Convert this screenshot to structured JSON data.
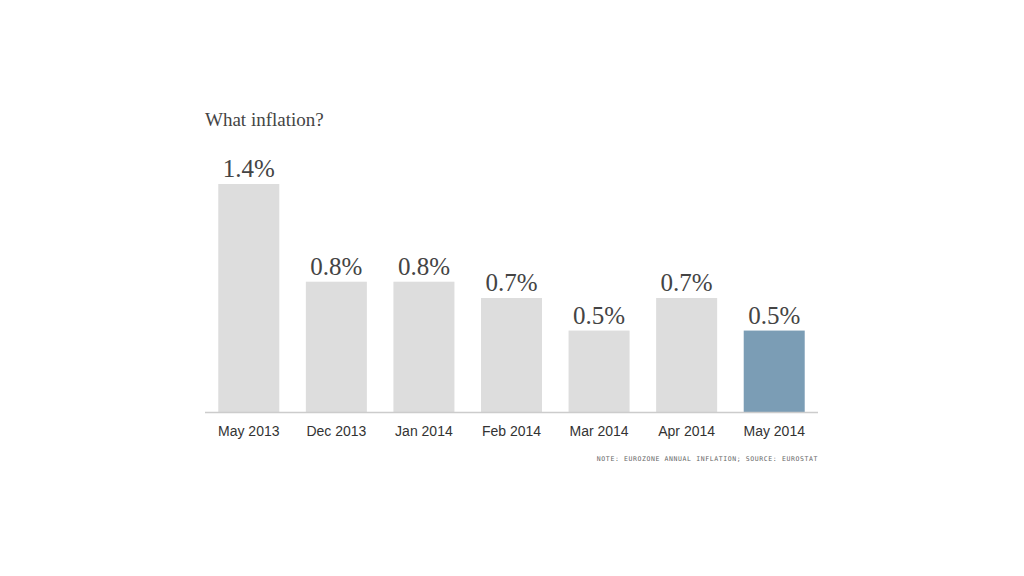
{
  "chart_data": {
    "type": "bar",
    "title": "What inflation?",
    "categories": [
      "May 2013",
      "Dec 2013",
      "Jan 2014",
      "Feb 2014",
      "Mar 2014",
      "Apr 2014",
      "May 2014"
    ],
    "values": [
      1.4,
      0.8,
      0.8,
      0.7,
      0.5,
      0.7,
      0.5
    ],
    "value_labels": [
      "1.4%",
      "0.8%",
      "0.8%",
      "0.7%",
      "0.5%",
      "0.7%",
      "0.5%"
    ],
    "colors": [
      "#dddddd",
      "#dddddd",
      "#dddddd",
      "#dddddd",
      "#dddddd",
      "#dddddd",
      "#7b9db5"
    ],
    "ylim": [
      0,
      1.4
    ],
    "data_labels": true,
    "tick_labels": "x",
    "grid": false,
    "note": "NOTE: EUROZONE ANNUAL INFLATION; SOURCE: EUROSTAT"
  }
}
